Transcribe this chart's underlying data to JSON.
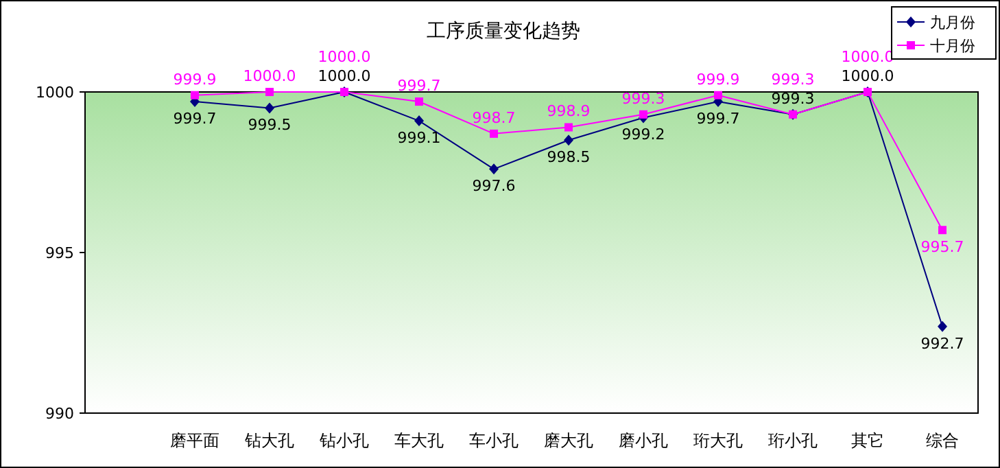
{
  "chart_data": {
    "type": "line",
    "title": "工序质量变化趋势",
    "categories": [
      "磨平面",
      "钻大孔",
      "钻小孔",
      "车大孔",
      "车小孔",
      "磨大孔",
      "磨小孔",
      "珩大孔",
      "珩小孔",
      "其它",
      "综合"
    ],
    "series": [
      {
        "name": "九月份",
        "color": "#000080",
        "marker": "diamond",
        "values": [
          999.7,
          999.5,
          1000.0,
          999.1,
          997.6,
          998.5,
          999.2,
          999.7,
          999.3,
          1000.0,
          992.7
        ],
        "value_labels": [
          "999.7",
          "999.5",
          "1000.0",
          "999.1",
          "997.6",
          "998.5",
          "999.2",
          "999.7",
          "999.3",
          "1000.0",
          "992.7"
        ]
      },
      {
        "name": "十月份",
        "color": "#ff00ff",
        "marker": "square",
        "values": [
          999.9,
          1000.0,
          1000.0,
          999.7,
          998.7,
          998.9,
          999.3,
          999.9,
          999.3,
          1000.0,
          995.7
        ],
        "value_labels": [
          "999.9",
          "1000.0",
          "1000.0",
          "999.7",
          "998.7",
          "998.9",
          "999.3",
          "999.9",
          "999.3",
          "1000.0",
          "995.7"
        ]
      }
    ],
    "ylim": [
      990,
      1000
    ],
    "yticks": [
      990,
      995,
      1000
    ],
    "legend": "top right"
  }
}
